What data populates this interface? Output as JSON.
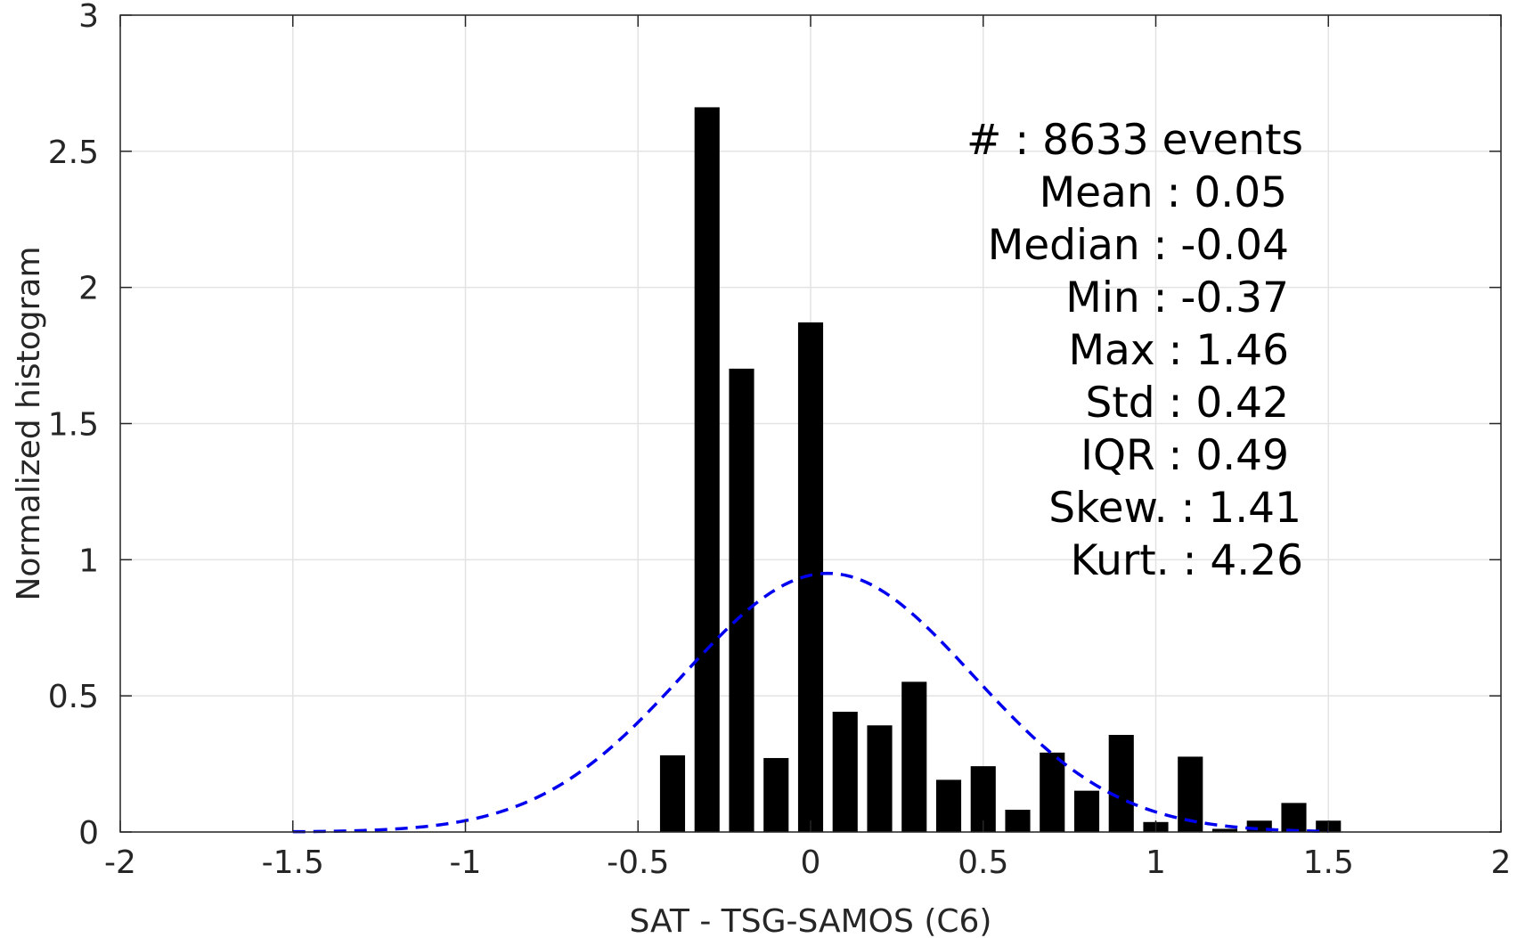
{
  "chart_data": {
    "type": "bar",
    "title": "",
    "xlabel": "SAT - TSG-SAMOS (C6)",
    "ylabel": "Normalized histogram",
    "xlim": [
      -2,
      2
    ],
    "ylim": [
      0,
      3
    ],
    "grid": true,
    "xticks": [
      -2,
      -1.5,
      -1,
      -0.5,
      0,
      0.5,
      1,
      1.5,
      2
    ],
    "xtick_labels": [
      "-2",
      "-1.5",
      "-1",
      "-0.5",
      "0",
      "0.5",
      "1",
      "1.5",
      "2"
    ],
    "yticks": [
      0,
      0.5,
      1,
      1.5,
      2,
      2.5,
      3
    ],
    "ytick_labels": [
      "0",
      "0.5",
      "1",
      "1.5",
      "2",
      "2.5",
      "3"
    ],
    "bar_width": 0.07,
    "bar_color": "#000000",
    "bars": [
      {
        "x": -0.4,
        "value": 0.28
      },
      {
        "x": -0.3,
        "value": 2.66
      },
      {
        "x": -0.2,
        "value": 1.7
      },
      {
        "x": -0.1,
        "value": 0.27
      },
      {
        "x": 0.0,
        "value": 1.87
      },
      {
        "x": 0.1,
        "value": 0.44
      },
      {
        "x": 0.2,
        "value": 0.39
      },
      {
        "x": 0.3,
        "value": 0.55
      },
      {
        "x": 0.4,
        "value": 0.19
      },
      {
        "x": 0.5,
        "value": 0.24
      },
      {
        "x": 0.6,
        "value": 0.08
      },
      {
        "x": 0.7,
        "value": 0.29
      },
      {
        "x": 0.8,
        "value": 0.15
      },
      {
        "x": 0.9,
        "value": 0.355
      },
      {
        "x": 1.0,
        "value": 0.035
      },
      {
        "x": 1.1,
        "value": 0.275
      },
      {
        "x": 1.2,
        "value": 0.01
      },
      {
        "x": 1.3,
        "value": 0.04
      },
      {
        "x": 1.4,
        "value": 0.105
      },
      {
        "x": 1.5,
        "value": 0.04
      }
    ],
    "fit_curve": {
      "type": "normal",
      "mean": 0.05,
      "std": 0.42,
      "x_range": [
        -1.5,
        1.5
      ],
      "color": "#0000ee",
      "style": "dashed"
    },
    "annotations": [
      "#  : 8633 events",
      "Mean : 0.05",
      "Median : -0.04",
      "Min : -0.37",
      "Max : 1.46",
      "Std : 0.42",
      "IQR : 0.49",
      "Skew. : 1.41",
      "Kurt. : 4.26"
    ]
  }
}
